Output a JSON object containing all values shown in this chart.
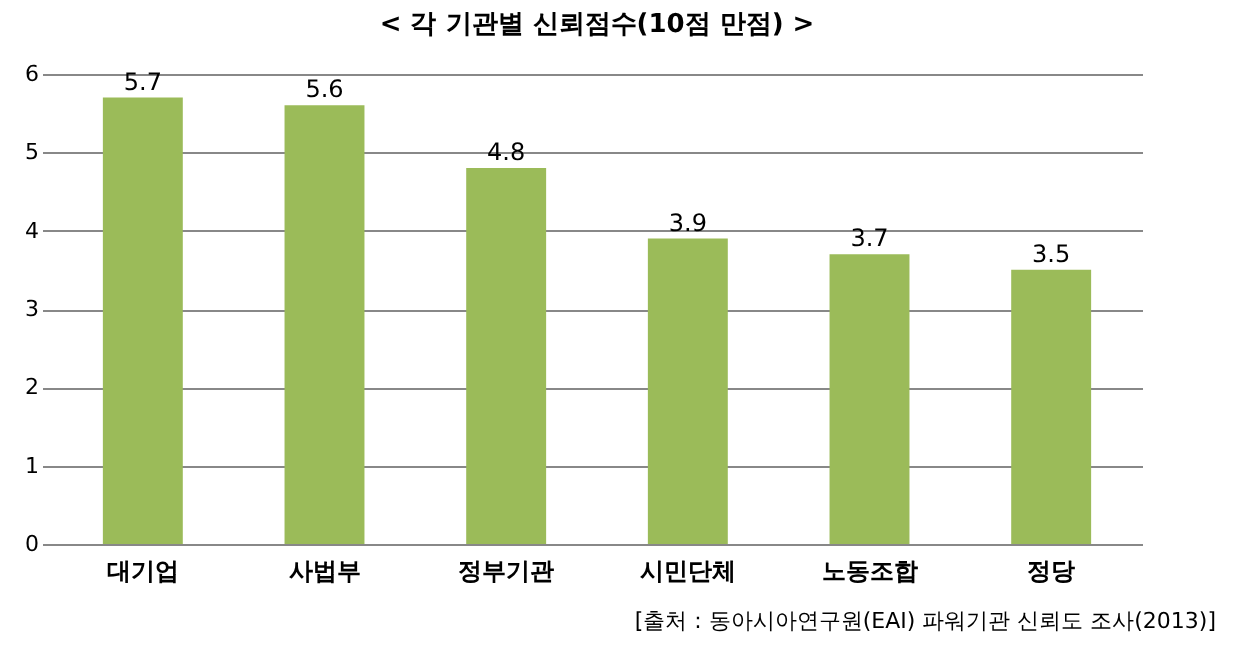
{
  "chart_data": {
    "type": "bar",
    "title": "< 각 기관별 신뢰점수(10점 만점) >",
    "categories": [
      "대기업",
      "사법부",
      "정부기관",
      "시민단체",
      "노동조합",
      "정당"
    ],
    "values": [
      5.7,
      5.6,
      4.8,
      3.9,
      3.7,
      3.5
    ],
    "color": "#9bbb59",
    "ylim": [
      0,
      6
    ],
    "yticks": [
      0,
      1,
      2,
      3,
      4,
      5,
      6
    ],
    "grid": "y",
    "data_labels": true,
    "annotations": [
      "[출처 : 동아시아연구원(EAI) 파워기관 신뢰도 조사(2013)]"
    ]
  }
}
